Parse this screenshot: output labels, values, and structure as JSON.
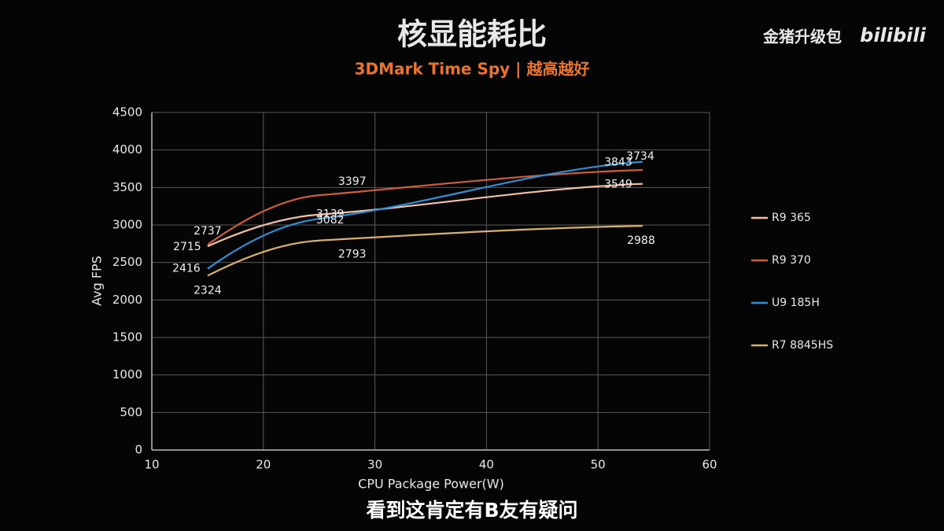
{
  "chart_data": {
    "type": "line",
    "title": "核显能耗比",
    "subtitle": "3DMark Time Spy | 越高越好",
    "x_label": "CPU Package Power(W)",
    "y_label": "Avg FPS",
    "x": [
      15,
      25,
      54
    ],
    "series": [
      {
        "name": "R9 365",
        "color": "#f2c0a4",
        "values": [
          2715,
          3139,
          3549
        ]
      },
      {
        "name": "R9 370",
        "color": "#cf5e38",
        "values": [
          2737,
          3397,
          3734
        ]
      },
      {
        "name": "U9 185H",
        "color": "#2e8fd6",
        "values": [
          2416,
          3082,
          3843
        ]
      },
      {
        "name": "R7 8845HS",
        "color": "#d8b06a",
        "values": [
          2324,
          2793,
          2988
        ]
      }
    ],
    "xlim": [
      10,
      60
    ],
    "xticks": [
      10,
      20,
      30,
      40,
      50,
      60
    ],
    "ylim": [
      0,
      4500
    ],
    "yticks": [
      0,
      500,
      1000,
      1500,
      2000,
      2500,
      3000,
      3500,
      4000,
      4500
    ],
    "grid": true,
    "legend": "right"
  },
  "watermark": {
    "channel": "金猪升级包",
    "site": "bilibili"
  },
  "caption": "看到这肯定有B友有疑问"
}
